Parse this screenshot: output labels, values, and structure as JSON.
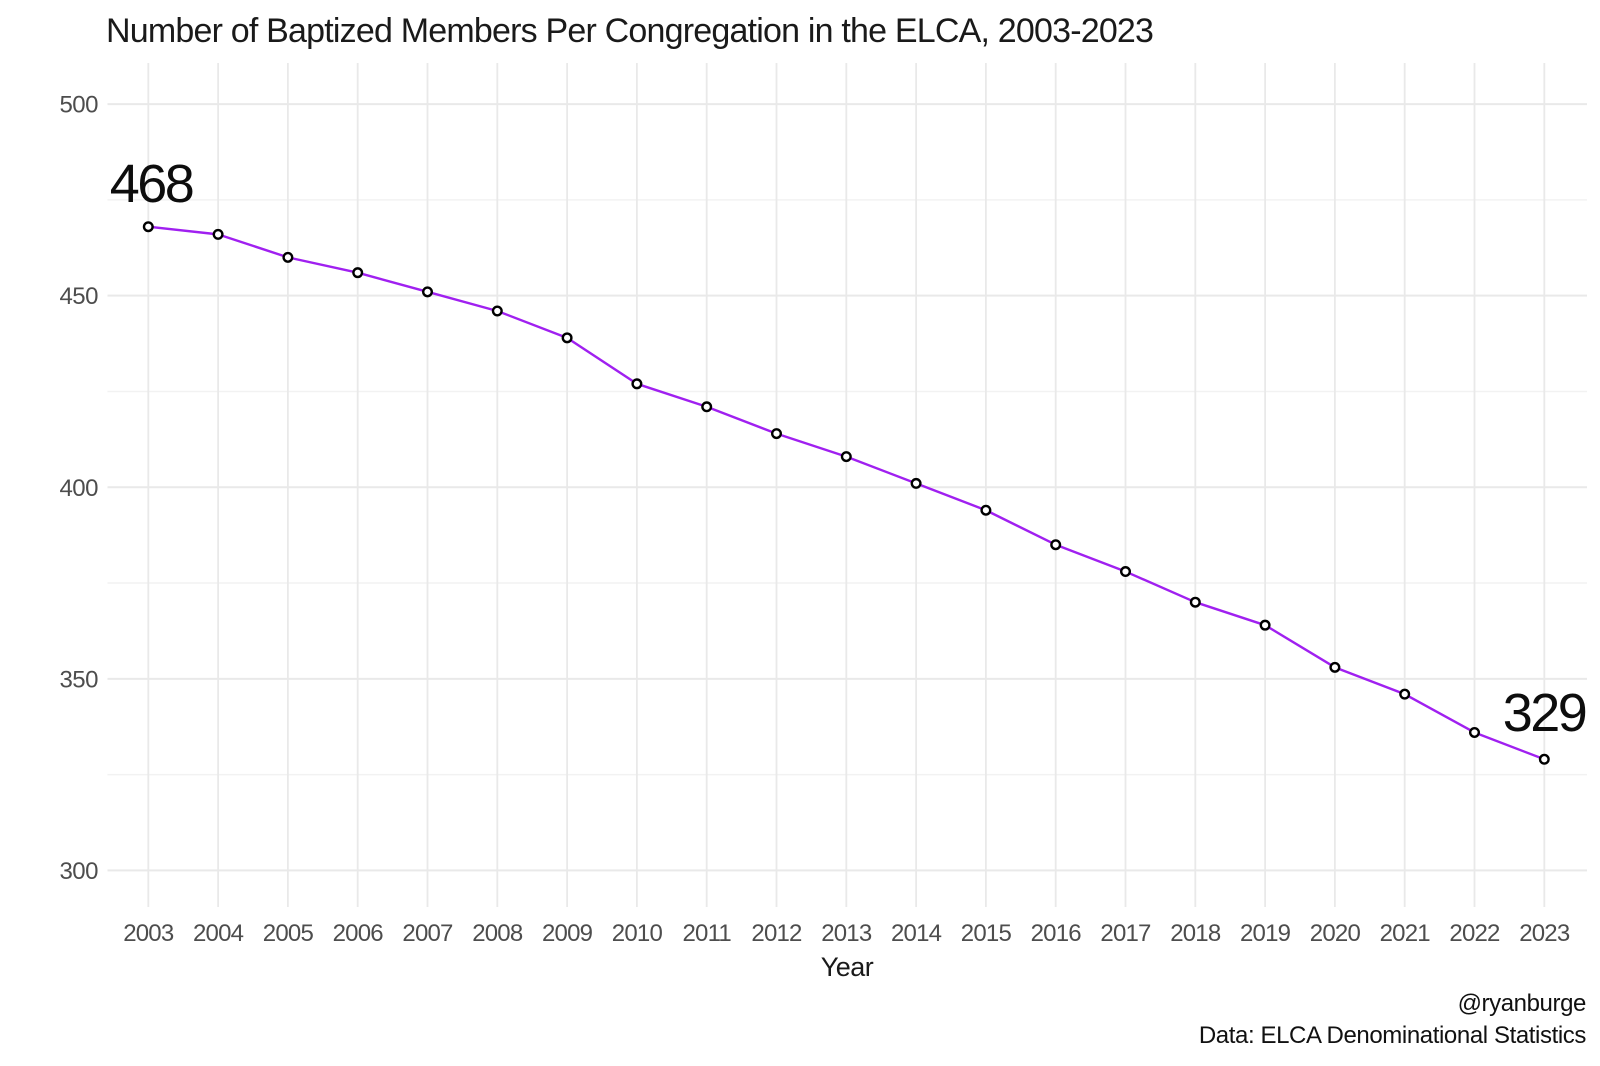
{
  "chart_data": {
    "type": "line",
    "title": "Number of Baptized Members Per Congregation in the ELCA, 2003-2023",
    "xlabel": "Year",
    "ylabel": "",
    "x": [
      2003,
      2004,
      2005,
      2006,
      2007,
      2008,
      2009,
      2010,
      2011,
      2012,
      2013,
      2014,
      2015,
      2016,
      2017,
      2018,
      2019,
      2020,
      2021,
      2022,
      2023
    ],
    "series": [
      {
        "name": "Baptized members per congregation",
        "values": [
          468,
          466,
          460,
          456,
          451,
          446,
          439,
          427,
          421,
          414,
          408,
          401,
          394,
          385,
          378,
          370,
          364,
          353,
          346,
          336,
          329
        ]
      }
    ],
    "yticks": [
      500,
      450,
      400,
      350,
      300
    ],
    "y_minor_ticks": [
      475,
      425,
      375,
      325
    ],
    "ylim": [
      289,
      511
    ],
    "xlim": [
      2002.4,
      2023.6
    ],
    "grid": "on",
    "legend": "none",
    "annotations": [
      {
        "x": 2003,
        "y": 468,
        "label": "468"
      },
      {
        "x": 2023,
        "y": 329,
        "label": "329"
      }
    ],
    "colors": {
      "line": "#A020F0",
      "marker_fill": "#FFFFFF",
      "marker_stroke": "#000000",
      "grid_major": "#E9E9E9",
      "grid_minor": "#F2F2F2",
      "tick_text": "#4D4D4D",
      "text": "#1A1A1A",
      "background": "#FFFFFF"
    }
  },
  "credits": {
    "handle": "@ryanburge",
    "source": "Data: ELCA Denominational Statistics"
  }
}
